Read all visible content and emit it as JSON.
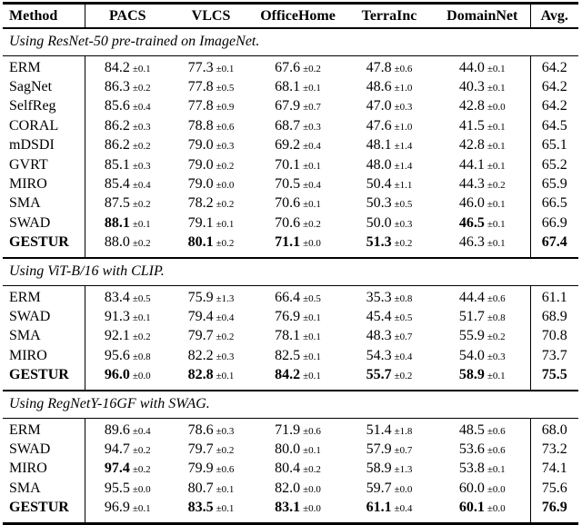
{
  "header": {
    "method": "Method",
    "columns": [
      "PACS",
      "VLCS",
      "OfficeHome",
      "TerraInc",
      "DomainNet"
    ],
    "avg": "Avg."
  },
  "colors": {
    "text": "#000000",
    "rule": "#000000",
    "background": "#ffffff"
  },
  "sections": [
    {
      "title": "Using ResNet-50 pre-trained on ImageNet.",
      "rows": [
        {
          "method": "ERM",
          "method_bold": false,
          "cells": [
            {
              "v": "84.2",
              "pm": "±0.1",
              "b": false
            },
            {
              "v": "77.3",
              "pm": "±0.1",
              "b": false
            },
            {
              "v": "67.6",
              "pm": "±0.2",
              "b": false
            },
            {
              "v": "47.8",
              "pm": "±0.6",
              "b": false
            },
            {
              "v": "44.0",
              "pm": "±0.1",
              "b": false
            }
          ],
          "avg": {
            "v": "64.2",
            "b": false
          }
        },
        {
          "method": "SagNet",
          "method_bold": false,
          "cells": [
            {
              "v": "86.3",
              "pm": "±0.2",
              "b": false
            },
            {
              "v": "77.8",
              "pm": "±0.5",
              "b": false
            },
            {
              "v": "68.1",
              "pm": "±0.1",
              "b": false
            },
            {
              "v": "48.6",
              "pm": "±1.0",
              "b": false
            },
            {
              "v": "40.3",
              "pm": "±0.1",
              "b": false
            }
          ],
          "avg": {
            "v": "64.2",
            "b": false
          }
        },
        {
          "method": "SelfReg",
          "method_bold": false,
          "cells": [
            {
              "v": "85.6",
              "pm": "±0.4",
              "b": false
            },
            {
              "v": "77.8",
              "pm": "±0.9",
              "b": false
            },
            {
              "v": "67.9",
              "pm": "±0.7",
              "b": false
            },
            {
              "v": "47.0",
              "pm": "±0.3",
              "b": false
            },
            {
              "v": "42.8",
              "pm": "±0.0",
              "b": false
            }
          ],
          "avg": {
            "v": "64.2",
            "b": false
          }
        },
        {
          "method": "CORAL",
          "method_bold": false,
          "cells": [
            {
              "v": "86.2",
              "pm": "±0.3",
              "b": false
            },
            {
              "v": "78.8",
              "pm": "±0.6",
              "b": false
            },
            {
              "v": "68.7",
              "pm": "±0.3",
              "b": false
            },
            {
              "v": "47.6",
              "pm": "±1.0",
              "b": false
            },
            {
              "v": "41.5",
              "pm": "±0.1",
              "b": false
            }
          ],
          "avg": {
            "v": "64.5",
            "b": false
          }
        },
        {
          "method": "mDSDI",
          "method_bold": false,
          "cells": [
            {
              "v": "86.2",
              "pm": "±0.2",
              "b": false
            },
            {
              "v": "79.0",
              "pm": "±0.3",
              "b": false
            },
            {
              "v": "69.2",
              "pm": "±0.4",
              "b": false
            },
            {
              "v": "48.1",
              "pm": "±1.4",
              "b": false
            },
            {
              "v": "42.8",
              "pm": "±0.1",
              "b": false
            }
          ],
          "avg": {
            "v": "65.1",
            "b": false
          }
        },
        {
          "method": "GVRT",
          "method_bold": false,
          "cells": [
            {
              "v": "85.1",
              "pm": "±0.3",
              "b": false
            },
            {
              "v": "79.0",
              "pm": "±0.2",
              "b": false
            },
            {
              "v": "70.1",
              "pm": "±0.1",
              "b": false
            },
            {
              "v": "48.0",
              "pm": "±1.4",
              "b": false
            },
            {
              "v": "44.1",
              "pm": "±0.1",
              "b": false
            }
          ],
          "avg": {
            "v": "65.2",
            "b": false
          }
        },
        {
          "method": "MIRO",
          "method_bold": false,
          "cells": [
            {
              "v": "85.4",
              "pm": "±0.4",
              "b": false
            },
            {
              "v": "79.0",
              "pm": "±0.0",
              "b": false
            },
            {
              "v": "70.5",
              "pm": "±0.4",
              "b": false
            },
            {
              "v": "50.4",
              "pm": "±1.1",
              "b": false
            },
            {
              "v": "44.3",
              "pm": "±0.2",
              "b": false
            }
          ],
          "avg": {
            "v": "65.9",
            "b": false
          }
        },
        {
          "method": "SMA",
          "method_bold": false,
          "cells": [
            {
              "v": "87.5",
              "pm": "±0.2",
              "b": false
            },
            {
              "v": "78.2",
              "pm": "±0.2",
              "b": false
            },
            {
              "v": "70.6",
              "pm": "±0.1",
              "b": false
            },
            {
              "v": "50.3",
              "pm": "±0.5",
              "b": false
            },
            {
              "v": "46.0",
              "pm": "±0.1",
              "b": false
            }
          ],
          "avg": {
            "v": "66.5",
            "b": false
          }
        },
        {
          "method": "SWAD",
          "method_bold": false,
          "cells": [
            {
              "v": "88.1",
              "pm": "±0.1",
              "b": true
            },
            {
              "v": "79.1",
              "pm": "±0.1",
              "b": false
            },
            {
              "v": "70.6",
              "pm": "±0.2",
              "b": false
            },
            {
              "v": "50.0",
              "pm": "±0.3",
              "b": false
            },
            {
              "v": "46.5",
              "pm": "±0.1",
              "b": true
            }
          ],
          "avg": {
            "v": "66.9",
            "b": false
          }
        },
        {
          "method": "GESTUR",
          "method_bold": true,
          "cells": [
            {
              "v": "88.0",
              "pm": "±0.2",
              "b": false
            },
            {
              "v": "80.1",
              "pm": "±0.2",
              "b": true
            },
            {
              "v": "71.1",
              "pm": "±0.0",
              "b": true
            },
            {
              "v": "51.3",
              "pm": "±0.2",
              "b": true
            },
            {
              "v": "46.3",
              "pm": "±0.1",
              "b": false
            }
          ],
          "avg": {
            "v": "67.4",
            "b": true
          }
        }
      ]
    },
    {
      "title": "Using ViT-B/16 with CLIP.",
      "rows": [
        {
          "method": "ERM",
          "method_bold": false,
          "cells": [
            {
              "v": "83.4",
              "pm": "±0.5",
              "b": false
            },
            {
              "v": "75.9",
              "pm": "±1.3",
              "b": false
            },
            {
              "v": "66.4",
              "pm": "±0.5",
              "b": false
            },
            {
              "v": "35.3",
              "pm": "±0.8",
              "b": false
            },
            {
              "v": "44.4",
              "pm": "±0.6",
              "b": false
            }
          ],
          "avg": {
            "v": "61.1",
            "b": false
          }
        },
        {
          "method": "SWAD",
          "method_bold": false,
          "cells": [
            {
              "v": "91.3",
              "pm": "±0.1",
              "b": false
            },
            {
              "v": "79.4",
              "pm": "±0.4",
              "b": false
            },
            {
              "v": "76.9",
              "pm": "±0.1",
              "b": false
            },
            {
              "v": "45.4",
              "pm": "±0.5",
              "b": false
            },
            {
              "v": "51.7",
              "pm": "±0.8",
              "b": false
            }
          ],
          "avg": {
            "v": "68.9",
            "b": false
          }
        },
        {
          "method": "SMA",
          "method_bold": false,
          "cells": [
            {
              "v": "92.1",
              "pm": "±0.2",
              "b": false
            },
            {
              "v": "79.7",
              "pm": "±0.2",
              "b": false
            },
            {
              "v": "78.1",
              "pm": "±0.1",
              "b": false
            },
            {
              "v": "48.3",
              "pm": "±0.7",
              "b": false
            },
            {
              "v": "55.9",
              "pm": "±0.2",
              "b": false
            }
          ],
          "avg": {
            "v": "70.8",
            "b": false
          }
        },
        {
          "method": "MIRO",
          "method_bold": false,
          "cells": [
            {
              "v": "95.6",
              "pm": "±0.8",
              "b": false
            },
            {
              "v": "82.2",
              "pm": "±0.3",
              "b": false
            },
            {
              "v": "82.5",
              "pm": "±0.1",
              "b": false
            },
            {
              "v": "54.3",
              "pm": "±0.4",
              "b": false
            },
            {
              "v": "54.0",
              "pm": "±0.3",
              "b": false
            }
          ],
          "avg": {
            "v": "73.7",
            "b": false
          }
        },
        {
          "method": "GESTUR",
          "method_bold": true,
          "cells": [
            {
              "v": "96.0",
              "pm": "±0.0",
              "b": true
            },
            {
              "v": "82.8",
              "pm": "±0.1",
              "b": true
            },
            {
              "v": "84.2",
              "pm": "±0.1",
              "b": true
            },
            {
              "v": "55.7",
              "pm": "±0.2",
              "b": true
            },
            {
              "v": "58.9",
              "pm": "±0.1",
              "b": true
            }
          ],
          "avg": {
            "v": "75.5",
            "b": true
          }
        }
      ]
    },
    {
      "title": "Using RegNetY-16GF with SWAG.",
      "rows": [
        {
          "method": "ERM",
          "method_bold": false,
          "cells": [
            {
              "v": "89.6",
              "pm": "±0.4",
              "b": false
            },
            {
              "v": "78.6",
              "pm": "±0.3",
              "b": false
            },
            {
              "v": "71.9",
              "pm": "±0.6",
              "b": false
            },
            {
              "v": "51.4",
              "pm": "±1.8",
              "b": false
            },
            {
              "v": "48.5",
              "pm": "±0.6",
              "b": false
            }
          ],
          "avg": {
            "v": "68.0",
            "b": false
          }
        },
        {
          "method": "SWAD",
          "method_bold": false,
          "cells": [
            {
              "v": "94.7",
              "pm": "±0.2",
              "b": false
            },
            {
              "v": "79.7",
              "pm": "±0.2",
              "b": false
            },
            {
              "v": "80.0",
              "pm": "±0.1",
              "b": false
            },
            {
              "v": "57.9",
              "pm": "±0.7",
              "b": false
            },
            {
              "v": "53.6",
              "pm": "±0.6",
              "b": false
            }
          ],
          "avg": {
            "v": "73.2",
            "b": false
          }
        },
        {
          "method": "MIRO",
          "method_bold": false,
          "cells": [
            {
              "v": "97.4",
              "pm": "±0.2",
              "b": true
            },
            {
              "v": "79.9",
              "pm": "±0.6",
              "b": false
            },
            {
              "v": "80.4",
              "pm": "±0.2",
              "b": false
            },
            {
              "v": "58.9",
              "pm": "±1.3",
              "b": false
            },
            {
              "v": "53.8",
              "pm": "±0.1",
              "b": false
            }
          ],
          "avg": {
            "v": "74.1",
            "b": false
          }
        },
        {
          "method": "SMA",
          "method_bold": false,
          "cells": [
            {
              "v": "95.5",
              "pm": "±0.0",
              "b": false
            },
            {
              "v": "80.7",
              "pm": "±0.1",
              "b": false
            },
            {
              "v": "82.0",
              "pm": "±0.0",
              "b": false
            },
            {
              "v": "59.7",
              "pm": "±0.0",
              "b": false
            },
            {
              "v": "60.0",
              "pm": "±0.0",
              "b": false
            }
          ],
          "avg": {
            "v": "75.6",
            "b": false
          }
        },
        {
          "method": "GESTUR",
          "method_bold": true,
          "cells": [
            {
              "v": "96.9",
              "pm": "±0.1",
              "b": false
            },
            {
              "v": "83.5",
              "pm": "±0.1",
              "b": true
            },
            {
              "v": "83.1",
              "pm": "±0.0",
              "b": true
            },
            {
              "v": "61.1",
              "pm": "±0.4",
              "b": true
            },
            {
              "v": "60.1",
              "pm": "±0.0",
              "b": true
            }
          ],
          "avg": {
            "v": "76.9",
            "b": true
          }
        }
      ]
    }
  ]
}
